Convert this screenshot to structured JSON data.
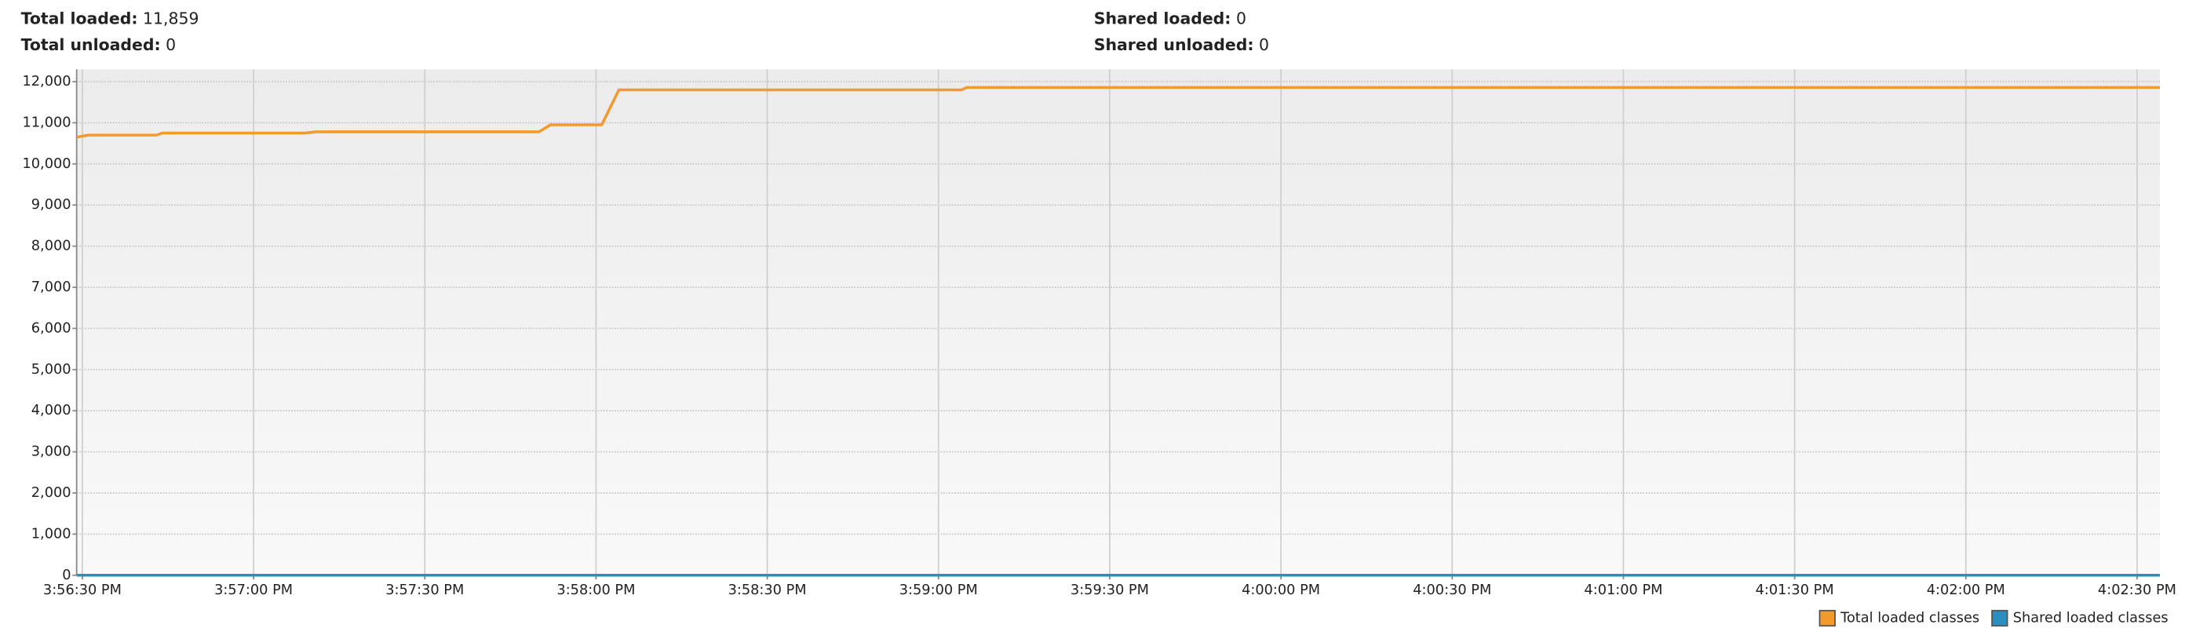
{
  "header": {
    "total_loaded": {
      "label": "Total loaded:",
      "value": "11,859"
    },
    "total_unloaded": {
      "label": "Total unloaded:",
      "value": "0"
    },
    "shared_loaded": {
      "label": "Shared loaded:",
      "value": "0"
    },
    "shared_unloaded": {
      "label": "Shared unloaded:",
      "value": "0"
    }
  },
  "chart_data": {
    "type": "line",
    "x": [
      "3:56:29 PM",
      "3:56:31 PM",
      "3:56:43 PM",
      "3:56:44 PM",
      "3:57:09 PM",
      "3:57:11 PM",
      "3:57:50 PM",
      "3:57:52 PM",
      "3:58:01 PM",
      "3:58:04 PM",
      "3:59:04 PM",
      "3:59:05 PM",
      "4:02:34 PM"
    ],
    "series": [
      {
        "name": "Total loaded classes",
        "color": "#f39a2f",
        "values": [
          10650,
          10700,
          10700,
          10750,
          10750,
          10780,
          10780,
          10950,
          10950,
          11800,
          11800,
          11859,
          11859
        ]
      },
      {
        "name": "Shared loaded classes",
        "color": "#2a8fc0",
        "values": [
          0,
          0,
          0,
          0,
          0,
          0,
          0,
          0,
          0,
          0,
          0,
          0,
          0
        ]
      }
    ],
    "xlim": [
      "3:56:29 PM",
      "4:02:34 PM"
    ],
    "xticks": [
      "3:56:30 PM",
      "3:57:00 PM",
      "3:57:30 PM",
      "3:58:00 PM",
      "3:58:30 PM",
      "3:59:00 PM",
      "3:59:30 PM",
      "4:00:00 PM",
      "4:00:30 PM",
      "4:01:00 PM",
      "4:01:30 PM",
      "4:02:00 PM",
      "4:02:30 PM"
    ],
    "ylim": [
      0,
      12300
    ],
    "yticks": [
      0,
      {
        "value": 1000,
        "label": "1,000"
      },
      {
        "value": 2000,
        "label": "2,000"
      },
      {
        "value": 3000,
        "label": "3,000"
      },
      {
        "value": 4000,
        "label": "4,000"
      },
      {
        "value": 5000,
        "label": "5,000"
      },
      {
        "value": 6000,
        "label": "6,000"
      },
      {
        "value": 7000,
        "label": "7,000"
      },
      {
        "value": 8000,
        "label": "8,000"
      },
      {
        "value": 9000,
        "label": "9,000"
      },
      {
        "value": 10000,
        "label": "10,000"
      },
      {
        "value": 11000,
        "label": "11,000"
      },
      {
        "value": 12000,
        "label": "12,000"
      }
    ],
    "grid": true,
    "legend": "bottom-right"
  }
}
